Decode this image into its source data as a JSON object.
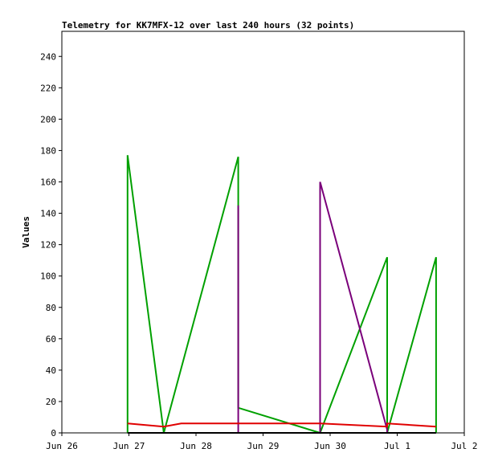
{
  "chart_data": {
    "type": "line",
    "title": "Telemetry for KK7MFX-12 over last 240 hours (32 points)",
    "xlabel": "",
    "ylabel": "Values",
    "x_ticks": [
      "Jun 26",
      "Jun 27",
      "Jun 28",
      "Jun 29",
      "Jun 30",
      "Jul 1",
      "Jul 2"
    ],
    "xlim": [
      0,
      6
    ],
    "y_ticks": [
      0,
      20,
      40,
      60,
      80,
      100,
      120,
      140,
      160,
      180,
      200,
      220,
      240
    ],
    "ylim": [
      0,
      256
    ],
    "grid": false,
    "series": [
      {
        "color": "#00a000",
        "points": [
          [
            0.98,
            0
          ],
          [
            0.98,
            177
          ],
          [
            1.52,
            0
          ],
          [
            2.63,
            176
          ],
          [
            2.63,
            16
          ],
          [
            3.85,
            0
          ],
          [
            4.85,
            112
          ],
          [
            4.85,
            0
          ],
          [
            5.58,
            112
          ],
          [
            5.58,
            0
          ]
        ]
      },
      {
        "color": "#7a007a",
        "points": [
          [
            2.63,
            0
          ],
          [
            2.63,
            145
          ],
          [
            2.63,
            0
          ],
          [
            3.85,
            0
          ],
          [
            3.85,
            160
          ],
          [
            4.85,
            2
          ],
          [
            4.85,
            0
          ]
        ]
      },
      {
        "color": "#e00000",
        "points": [
          [
            0.98,
            6
          ],
          [
            1.52,
            4
          ],
          [
            1.78,
            6
          ],
          [
            3.85,
            6
          ],
          [
            4.85,
            4
          ],
          [
            4.85,
            6
          ],
          [
            5.58,
            4
          ]
        ]
      },
      {
        "color": "#000000",
        "points": [
          [
            0.98,
            0
          ],
          [
            5.58,
            0
          ]
        ]
      }
    ]
  }
}
